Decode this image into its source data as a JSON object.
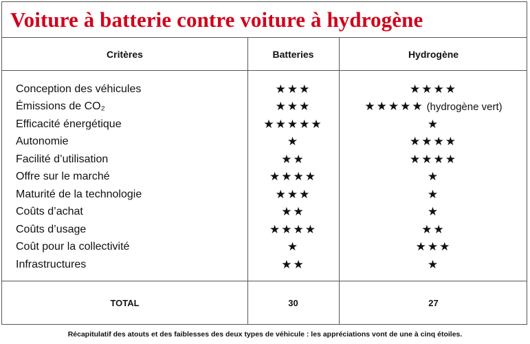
{
  "title": "Voiture à batterie contre voiture à hydrogène",
  "headers": {
    "criteria": "Critères",
    "batteries": "Batteries",
    "hydrogen": "Hydrogène"
  },
  "rows": [
    {
      "criterion": "Conception des véhicules",
      "batteries": "★★★",
      "hydrogen": "★★★★",
      "hydrogen_note": ""
    },
    {
      "criterion": "Émissions de CO₂",
      "batteries": "★★★",
      "hydrogen": "★★★★★",
      "hydrogen_note": "(hydrogène vert)"
    },
    {
      "criterion": "Efficacité énergétique",
      "batteries": "★★★★★",
      "hydrogen": "★",
      "hydrogen_note": ""
    },
    {
      "criterion": "Autonomie",
      "batteries": "★",
      "hydrogen": "★★★★",
      "hydrogen_note": ""
    },
    {
      "criterion": "Facilité d’utilisation",
      "batteries": "★★",
      "hydrogen": "★★★★",
      "hydrogen_note": ""
    },
    {
      "criterion": "Offre sur le marché",
      "batteries": "★★★★",
      "hydrogen": "★",
      "hydrogen_note": ""
    },
    {
      "criterion": "Maturité de la technologie",
      "batteries": "★★★",
      "hydrogen": "★",
      "hydrogen_note": ""
    },
    {
      "criterion": "Coûts d’achat",
      "batteries": "★★",
      "hydrogen": "★",
      "hydrogen_note": ""
    },
    {
      "criterion": "Coûts d’usage",
      "batteries": "★★★★",
      "hydrogen": "★★",
      "hydrogen_note": ""
    },
    {
      "criterion": "Coût pour la collectivité",
      "batteries": "★",
      "hydrogen": "★★★",
      "hydrogen_note": ""
    },
    {
      "criterion": "Infrastructures",
      "batteries": "★★",
      "hydrogen": "★",
      "hydrogen_note": ""
    }
  ],
  "total": {
    "label": "TOTAL",
    "batteries": "30",
    "hydrogen": "27"
  },
  "caption": "Récapitulatif  des atouts et des faiblesses des deux types de véhicule : les appréciations vont de une à cinq étoiles.",
  "colors": {
    "title": "#d0021b",
    "border": "#555555",
    "text": "#111111"
  }
}
